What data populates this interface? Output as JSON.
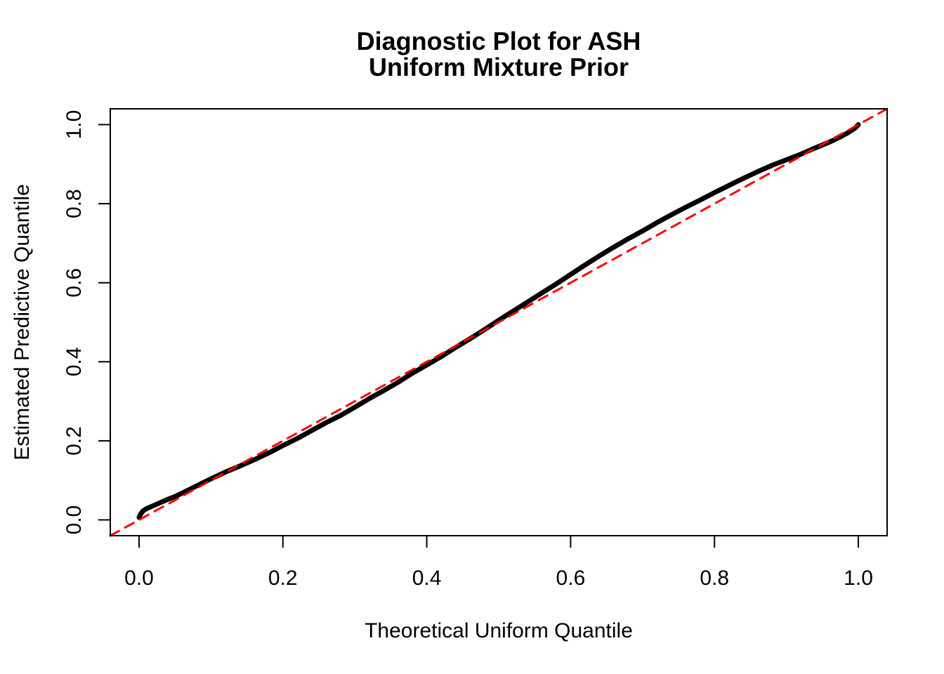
{
  "title": {
    "line1": "Diagnostic Plot for ASH",
    "line2": "Uniform Mixture Prior"
  },
  "axes": {
    "xlabel": "Theoretical Uniform Quantile",
    "ylabel": "Estimated Predictive Quantile"
  },
  "colors": {
    "curve": "#000000",
    "reference": "#FF0000",
    "axis": "#000000",
    "background": "#FFFFFF"
  },
  "chart_data": {
    "type": "line",
    "title": "Diagnostic Plot for ASH Uniform Mixture Prior",
    "xlabel": "Theoretical Uniform Quantile",
    "ylabel": "Estimated Predictive Quantile",
    "xlim": [
      -0.04,
      1.04
    ],
    "ylim": [
      -0.04,
      1.04
    ],
    "grid": false,
    "legend": "none",
    "xticks": [
      0.0,
      0.2,
      0.4,
      0.6,
      0.8,
      1.0
    ],
    "yticks": [
      0.0,
      0.2,
      0.4,
      0.6,
      0.8,
      1.0
    ],
    "xtick_labels": [
      "0.0",
      "0.2",
      "0.4",
      "0.6",
      "0.8",
      "1.0"
    ],
    "ytick_labels": [
      "0.0",
      "0.2",
      "0.4",
      "0.6",
      "0.8",
      "1.0"
    ],
    "series": [
      {
        "name": "estimated-predictive-quantiles",
        "type": "line",
        "color": "#000000",
        "stroke_width": 7,
        "dashed": false,
        "points": [
          [
            0.0,
            0.006
          ],
          [
            0.002,
            0.014
          ],
          [
            0.005,
            0.022
          ],
          [
            0.01,
            0.028
          ],
          [
            0.02,
            0.036
          ],
          [
            0.03,
            0.044
          ],
          [
            0.04,
            0.052
          ],
          [
            0.05,
            0.059
          ],
          [
            0.06,
            0.068
          ],
          [
            0.08,
            0.086
          ],
          [
            0.1,
            0.104
          ],
          [
            0.12,
            0.121
          ],
          [
            0.14,
            0.136
          ],
          [
            0.16,
            0.152
          ],
          [
            0.18,
            0.169
          ],
          [
            0.2,
            0.188
          ],
          [
            0.22,
            0.206
          ],
          [
            0.24,
            0.226
          ],
          [
            0.26,
            0.246
          ],
          [
            0.28,
            0.264
          ],
          [
            0.3,
            0.285
          ],
          [
            0.32,
            0.307
          ],
          [
            0.34,
            0.327
          ],
          [
            0.36,
            0.348
          ],
          [
            0.38,
            0.371
          ],
          [
            0.4,
            0.392
          ],
          [
            0.42,
            0.413
          ],
          [
            0.44,
            0.436
          ],
          [
            0.46,
            0.458
          ],
          [
            0.48,
            0.481
          ],
          [
            0.5,
            0.505
          ],
          [
            0.52,
            0.528
          ],
          [
            0.54,
            0.551
          ],
          [
            0.56,
            0.574
          ],
          [
            0.58,
            0.597
          ],
          [
            0.6,
            0.621
          ],
          [
            0.62,
            0.645
          ],
          [
            0.64,
            0.668
          ],
          [
            0.66,
            0.69
          ],
          [
            0.68,
            0.711
          ],
          [
            0.7,
            0.731
          ],
          [
            0.72,
            0.752
          ],
          [
            0.74,
            0.772
          ],
          [
            0.76,
            0.791
          ],
          [
            0.78,
            0.809
          ],
          [
            0.8,
            0.828
          ],
          [
            0.82,
            0.846
          ],
          [
            0.84,
            0.864
          ],
          [
            0.86,
            0.881
          ],
          [
            0.88,
            0.897
          ],
          [
            0.9,
            0.911
          ],
          [
            0.92,
            0.925
          ],
          [
            0.94,
            0.941
          ],
          [
            0.96,
            0.956
          ],
          [
            0.975,
            0.969
          ],
          [
            0.985,
            0.979
          ],
          [
            0.992,
            0.987
          ],
          [
            0.996,
            0.992
          ],
          [
            1.0,
            1.0
          ]
        ]
      },
      {
        "name": "identity-reference-line",
        "type": "line",
        "color": "#FF0000",
        "stroke_width": 3,
        "dashed": true,
        "points": [
          [
            -0.04,
            -0.04
          ],
          [
            1.04,
            1.04
          ]
        ]
      }
    ]
  }
}
